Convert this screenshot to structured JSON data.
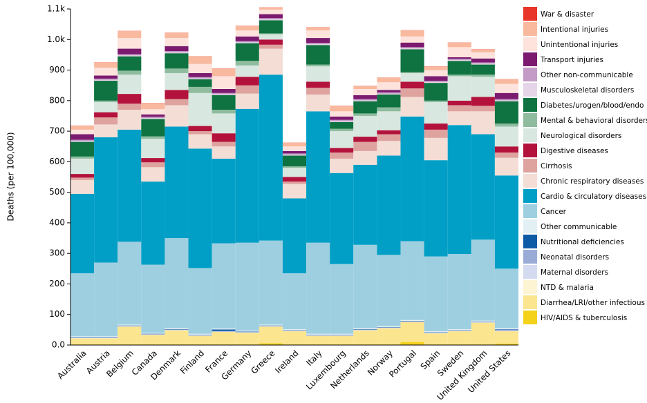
{
  "chart_data": {
    "type": "stacked_bar",
    "y_label": "Deaths (per 100,000)",
    "categories": [
      "Australia",
      "Austria",
      "Belgium",
      "Canada",
      "Denmark",
      "Finland",
      "France",
      "Germany",
      "Greece",
      "Ireland",
      "Italy",
      "Luxembourg",
      "Netherlands",
      "Norway",
      "Portugal",
      "Spain",
      "Sweden",
      "United Kingdom",
      "United States"
    ],
    "ylim": [
      0,
      1100
    ],
    "yticks": [
      {
        "value": 0,
        "label": "0.0"
      },
      100,
      200,
      300,
      400,
      500,
      600,
      700,
      800,
      900,
      {
        "value": 1000,
        "label": "1.0k"
      },
      {
        "value": 1100,
        "label": "1.1k"
      }
    ],
    "grid": false,
    "legend": "right",
    "series": [
      {
        "name": "HIV/AIDS & tuberculosis",
        "color": "#f5d21a",
        "values": [
          2,
          2,
          2,
          2,
          2,
          2,
          2,
          2,
          6,
          2,
          2,
          2,
          2,
          2,
          10,
          2,
          2,
          2,
          5
        ]
      },
      {
        "name": "Diarrhea/LRI/other infectious",
        "color": "#fbe58f",
        "values": [
          20,
          20,
          58,
          31,
          46,
          28,
          41,
          38,
          54,
          43,
          28,
          28,
          46,
          53,
          65,
          36,
          43,
          71,
          40
        ]
      },
      {
        "name": "NTD & malaria",
        "color": "#fdf4d4",
        "values": [
          0.5,
          0.5,
          0.5,
          0.5,
          0.5,
          0.5,
          0.5,
          0.5,
          0.5,
          0.5,
          0.5,
          0.5,
          0.5,
          0.5,
          0.5,
          0.5,
          0.5,
          0.5,
          0.5
        ]
      },
      {
        "name": "Maternal disorders",
        "color": "#d4daef",
        "values": [
          0.5,
          0.5,
          0.5,
          0.5,
          0.5,
          0.5,
          0.5,
          0.5,
          0.5,
          0.5,
          0.5,
          0.5,
          0.5,
          0.5,
          0.5,
          0.5,
          0.5,
          0.5,
          0.5
        ]
      },
      {
        "name": "Neonatal disorders",
        "color": "#9aabd6",
        "values": [
          2,
          2,
          2,
          2,
          2,
          2,
          2,
          2,
          2,
          2,
          2,
          2,
          2,
          2,
          2,
          2,
          2,
          2,
          5
        ]
      },
      {
        "name": "Nutritional deficiencies",
        "color": "#0d5aa7",
        "values": [
          1,
          1,
          1,
          1,
          1,
          1,
          5,
          1,
          1,
          1,
          1,
          1,
          1,
          1,
          1,
          1,
          1,
          1,
          1
        ]
      },
      {
        "name": "Other communicable",
        "color": "#e2f0f4",
        "values": [
          3,
          3,
          3,
          3,
          3,
          3,
          3,
          3,
          3,
          3,
          3,
          3,
          3,
          3,
          3,
          3,
          3,
          3,
          3
        ]
      },
      {
        "name": "Cancer",
        "color": "#9ecfe0",
        "values": [
          206,
          241,
          271,
          223,
          295,
          215,
          279,
          288,
          275,
          183,
          298,
          228,
          273,
          233,
          258,
          245,
          246,
          265,
          195
        ]
      },
      {
        "name": "Cardio & circulatory diseases",
        "color": "#019fc6",
        "values": [
          260,
          410,
          367,
          272,
          365,
          391,
          277,
          438,
          543,
          245,
          430,
          298,
          262,
          325,
          408,
          315,
          422,
          345,
          305
        ]
      },
      {
        "name": "Chronic respiratory diseases",
        "color": "#f3ddd5",
        "values": [
          45,
          42,
          65,
          47,
          70,
          47,
          40,
          50,
          85,
          47,
          55,
          47,
          45,
          48,
          64,
          73,
          45,
          75,
          58
        ]
      },
      {
        "name": "Cirrhosis",
        "color": "#dea39f",
        "values": [
          8,
          23,
          20,
          16,
          20,
          10,
          15,
          27,
          13,
          8,
          22,
          20,
          30,
          22,
          28,
          27,
          20,
          18,
          17
        ]
      },
      {
        "name": "Digestive diseases",
        "color": "#b3123c",
        "values": [
          12,
          17,
          32,
          14,
          30,
          17,
          28,
          28,
          17,
          15,
          20,
          15,
          17,
          13,
          22,
          20,
          15,
          29,
          20
        ]
      },
      {
        "name": "Neurological disorders",
        "color": "#d8e8e0",
        "values": [
          50,
          33,
          63,
          63,
          55,
          108,
          65,
          37,
          17,
          30,
          50,
          55,
          68,
          62,
          28,
          70,
          80,
          66,
          65
        ]
      },
      {
        "name": "Mental & behavioral disorders",
        "color": "#8fbc9f",
        "values": [
          7,
          5,
          13,
          8,
          15,
          20,
          12,
          15,
          3,
          5,
          6,
          8,
          8,
          13,
          3,
          5,
          5,
          7,
          10
        ]
      },
      {
        "name": "Diabetes/urogen/blood/endo",
        "color": "#0e7340",
        "values": [
          48,
          65,
          47,
          57,
          50,
          25,
          48,
          58,
          43,
          35,
          64,
          22,
          40,
          42,
          75,
          58,
          45,
          33,
          73
        ]
      },
      {
        "name": "Musculoskeletal disorders",
        "color": "#e6d5e8",
        "values": [
          3,
          3,
          3,
          3,
          3,
          3,
          3,
          3,
          3,
          3,
          3,
          3,
          3,
          3,
          3,
          3,
          3,
          3,
          3
        ]
      },
      {
        "name": "Other non-communicable",
        "color": "#c39bc6",
        "values": [
          4,
          4,
          4,
          4,
          4,
          4,
          4,
          4,
          4,
          4,
          4,
          4,
          4,
          4,
          4,
          4,
          4,
          4,
          4
        ]
      },
      {
        "name": "Transport injuries",
        "color": "#7b1a6f",
        "values": [
          18,
          10,
          18,
          8,
          16,
          13,
          13,
          15,
          13,
          8,
          16,
          11,
          13,
          8,
          15,
          15,
          5,
          13,
          20
        ]
      },
      {
        "name": "Unintentional injuries",
        "color": "#fde3dc",
        "values": [
          15,
          26,
          35,
          17,
          27,
          30,
          42,
          20,
          15,
          15,
          25,
          17,
          20,
          25,
          20,
          20,
          33,
          20,
          30
        ]
      },
      {
        "name": "Intentional injuries",
        "color": "#f9b99f",
        "values": [
          13,
          17,
          23,
          20,
          17,
          25,
          25,
          15,
          7,
          12,
          10,
          18,
          10,
          15,
          20,
          12,
          15,
          10,
          15
        ]
      },
      {
        "name": "War & disaster",
        "color": "#e8362a",
        "values": [
          0.5,
          0.5,
          0.5,
          0.5,
          0.5,
          0.5,
          0.5,
          0.5,
          0.5,
          0.5,
          0.5,
          0.5,
          0.5,
          0.5,
          0.5,
          0.5,
          0.5,
          0.5,
          0.5
        ]
      }
    ]
  }
}
